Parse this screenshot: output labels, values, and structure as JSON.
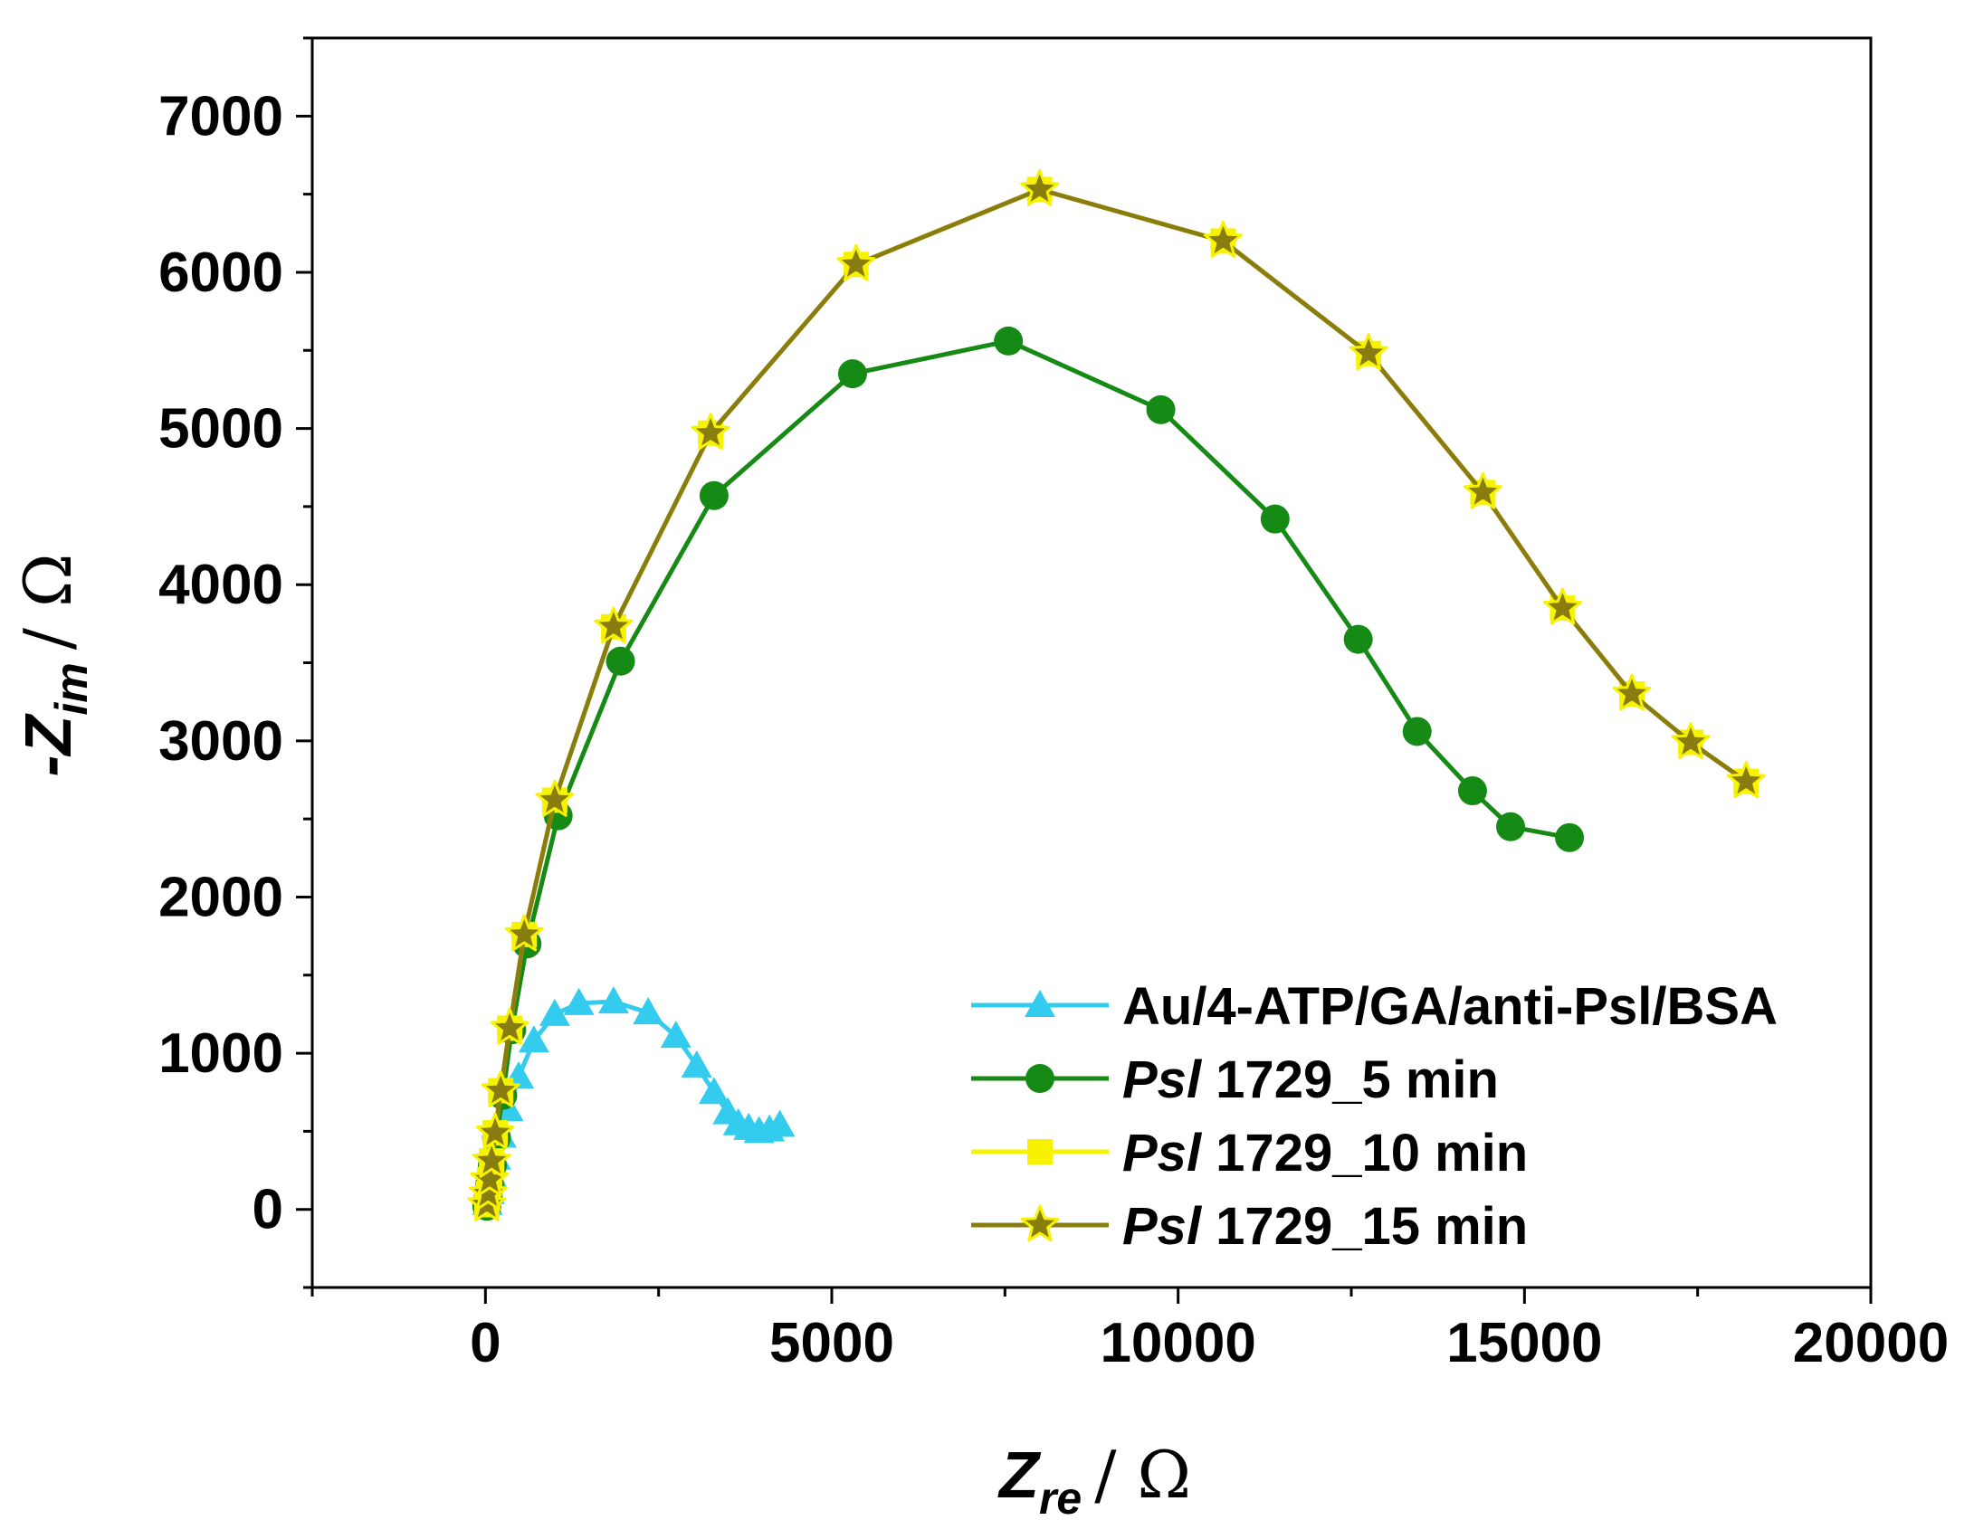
{
  "chart_data": {
    "type": "line",
    "title": "",
    "xlabel": {
      "main": "Z",
      "sub": "re",
      "unit": "/ Ω"
    },
    "ylabel": {
      "prefix": "-",
      "main": "Z",
      "sub": "im",
      "unit": "/ Ω"
    },
    "xlim": [
      -2500,
      20000
    ],
    "ylim": [
      -500,
      7500
    ],
    "xticks": [
      0,
      5000,
      10000,
      15000,
      20000
    ],
    "yticks": [
      0,
      1000,
      2000,
      3000,
      4000,
      5000,
      6000,
      7000
    ],
    "xtick_labels": [
      "0",
      "5000",
      "10000",
      "15000",
      "20000"
    ],
    "ytick_labels": [
      "0",
      "1000",
      "2000",
      "3000",
      "4000",
      "5000",
      "6000",
      "7000"
    ],
    "legend_position": "bottom-right",
    "series": [
      {
        "name": "Au/4-ATP/GA/anti-Psl/BSA",
        "legend_parts": [
          "Au/4-ATP/GA/anti-Psl/BSA"
        ],
        "marker": "triangle",
        "color": "#33ccee",
        "x": [
          30,
          60,
          100,
          150,
          230,
          330,
          480,
          700,
          1000,
          1350,
          1850,
          2350,
          2750,
          3050,
          3300,
          3500,
          3650,
          3800,
          3950,
          4100,
          4250
        ],
        "y": [
          40,
          110,
          210,
          330,
          470,
          640,
          850,
          1080,
          1250,
          1320,
          1330,
          1260,
          1110,
          920,
          750,
          620,
          550,
          520,
          500,
          510,
          540
        ]
      },
      {
        "name": "Psl 1729_5 min",
        "legend_parts": [
          "Psl",
          " 1729_5 min"
        ],
        "marker": "circle",
        "color": "#158a15",
        "x": [
          20,
          40,
          60,
          100,
          160,
          250,
          380,
          600,
          1050,
          1950,
          3300,
          5300,
          7550,
          9750,
          11400,
          12600,
          13450,
          14250,
          14800,
          15650
        ],
        "y": [
          20,
          80,
          160,
          280,
          460,
          730,
          1150,
          1700,
          2520,
          3510,
          4570,
          5350,
          5560,
          5120,
          4420,
          3650,
          3060,
          2680,
          2450,
          2380
        ]
      },
      {
        "name": "Psl 1729_10 min",
        "legend_parts": [
          "Psl",
          " 1729_10 min"
        ],
        "marker": "square",
        "color": "#f7f300",
        "x": [
          20,
          40,
          60,
          90,
          140,
          220,
          350,
          560,
          1000,
          1850,
          3250,
          5350,
          8000,
          10650,
          12750,
          14400,
          15550,
          16550,
          17400,
          18200
        ],
        "y": [
          30,
          100,
          190,
          310,
          490,
          760,
          1160,
          1760,
          2620,
          3730,
          4970,
          6050,
          6530,
          6200,
          5480,
          4590,
          3850,
          3300,
          2990,
          2740
        ]
      },
      {
        "name": "Psl 1729_15 min",
        "legend_parts": [
          "Psl",
          " 1729_15 min"
        ],
        "marker": "star",
        "color": "#8a7d0f",
        "x": [
          20,
          40,
          60,
          90,
          140,
          220,
          350,
          560,
          1000,
          1850,
          3250,
          5350,
          8000,
          10650,
          12750,
          14400,
          15550,
          16550,
          17400,
          18200
        ],
        "y": [
          30,
          100,
          190,
          310,
          490,
          760,
          1160,
          1760,
          2620,
          3730,
          4970,
          6050,
          6530,
          6200,
          5480,
          4590,
          3850,
          3300,
          2990,
          2740
        ]
      }
    ]
  }
}
